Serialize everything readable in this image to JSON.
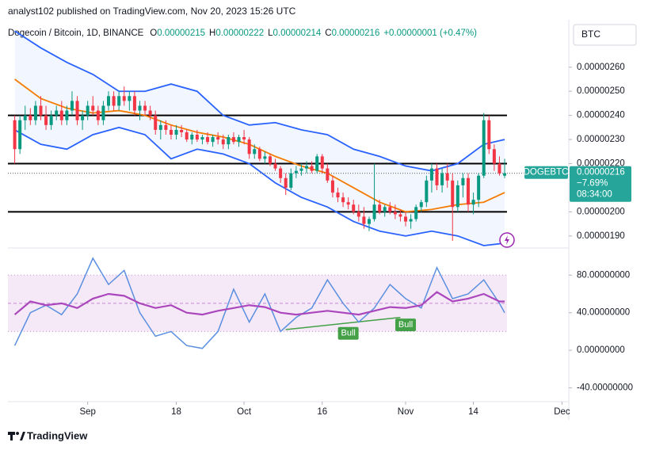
{
  "header": {
    "byline": "analyst102 published on TradingView.com, Nov 20, 2023 15:26 UTC",
    "brand": "TradingView"
  },
  "legend": {
    "symbol": "Dogecoin / Bitcoin, 1D, BINANCE",
    "ohlc": [
      {
        "label": "O",
        "value": "0.00000215"
      },
      {
        "label": "H",
        "value": "0.00000222"
      },
      {
        "label": "L",
        "value": "0.00000214"
      },
      {
        "label": "C",
        "value": "0.00000216"
      }
    ],
    "change": "+0.00000001 (+0.47%)"
  },
  "currency": "BTC",
  "price_tag": {
    "symbol": "DOGEBTC",
    "price": "0.00000216",
    "change": "−7.69%",
    "countdown": "08:34:00"
  },
  "chart_data": [
    {
      "type": "candlestick",
      "up_color": "#089981",
      "down_color": "#f23645",
      "x": [
        "2023-08-18",
        "2023-08-19",
        "2023-08-20",
        "2023-08-21",
        "2023-08-22",
        "2023-08-23",
        "2023-08-24",
        "2023-08-25",
        "2023-08-26",
        "2023-08-27",
        "2023-08-28",
        "2023-08-29",
        "2023-08-30",
        "2023-08-31",
        "2023-09-01",
        "2023-09-02",
        "2023-09-03",
        "2023-09-04",
        "2023-09-05",
        "2023-09-06",
        "2023-09-07",
        "2023-09-08",
        "2023-09-09",
        "2023-09-10",
        "2023-09-11",
        "2023-09-12",
        "2023-09-13",
        "2023-09-14",
        "2023-09-15",
        "2023-09-16",
        "2023-09-17",
        "2023-09-18",
        "2023-09-19",
        "2023-09-20",
        "2023-09-21",
        "2023-09-22",
        "2023-09-23",
        "2023-09-24",
        "2023-09-25",
        "2023-09-26",
        "2023-09-27",
        "2023-09-28",
        "2023-09-29",
        "2023-09-30",
        "2023-10-01",
        "2023-10-02",
        "2023-10-03",
        "2023-10-04",
        "2023-10-05",
        "2023-10-06",
        "2023-10-07",
        "2023-10-08",
        "2023-10-09",
        "2023-10-10",
        "2023-10-11",
        "2023-10-12",
        "2023-10-13",
        "2023-10-14",
        "2023-10-15",
        "2023-10-16",
        "2023-10-17",
        "2023-10-18",
        "2023-10-19",
        "2023-10-20",
        "2023-10-21",
        "2023-10-22",
        "2023-10-23",
        "2023-10-24",
        "2023-10-25",
        "2023-10-26",
        "2023-10-27",
        "2023-10-28",
        "2023-10-29",
        "2023-10-30",
        "2023-10-31",
        "2023-11-01",
        "2023-11-02",
        "2023-11-03",
        "2023-11-04",
        "2023-11-05",
        "2023-11-06",
        "2023-11-07",
        "2023-11-08",
        "2023-11-09",
        "2023-11-10",
        "2023-11-11",
        "2023-11-12",
        "2023-11-13",
        "2023-11-14",
        "2023-11-15",
        "2023-11-16",
        "2023-11-17",
        "2023-11-18",
        "2023-11-19",
        "2023-11-20"
      ],
      "open": [
        2.38e-06,
        2.26e-06,
        2.38e-06,
        2.4e-06,
        2.38e-06,
        2.44e-06,
        2.4e-06,
        2.36e-06,
        2.4e-06,
        2.42e-06,
        2.38e-06,
        2.42e-06,
        2.46e-06,
        2.38e-06,
        2.4e-06,
        2.44e-06,
        2.42e-06,
        2.38e-06,
        2.44e-06,
        2.48e-06,
        2.44e-06,
        2.48e-06,
        2.46e-06,
        2.48e-06,
        2.42e-06,
        2.44e-06,
        2.42e-06,
        2.4e-06,
        2.34e-06,
        2.36e-06,
        2.34e-06,
        2.32e-06,
        2.34e-06,
        2.33e-06,
        2.3e-06,
        2.32e-06,
        2.3e-06,
        2.31e-06,
        2.29e-06,
        2.31e-06,
        2.3e-06,
        2.28e-06,
        2.31e-06,
        2.29e-06,
        2.31e-06,
        2.3e-06,
        2.24e-06,
        2.26e-06,
        2.22e-06,
        2.23e-06,
        2.2e-06,
        2.18e-06,
        2.14e-06,
        2.1e-06,
        2.16e-06,
        2.17e-06,
        2.18e-06,
        2.19e-06,
        2.17e-06,
        2.23e-06,
        2.18e-06,
        2.13e-06,
        2.08e-06,
        2.06e-06,
        2.04e-06,
        2.03e-06,
        2e-06,
        1.98e-06,
        1.95e-06,
        1.97e-06,
        2.03e-06,
        2e-06,
        2.02e-06,
        2e-06,
        1.99e-06,
        1.98e-06,
        1.96e-06,
        1.97e-06,
        2.02e-06,
        2.04e-06,
        2.13e-06,
        2.18e-06,
        2.11e-06,
        2.16e-06,
        2.13e-06,
        2.02e-06,
        2.11e-06,
        2.14e-06,
        2.03e-06,
        2.05e-06,
        2.15e-06,
        2.38e-06,
        2.26e-06,
        2.2e-06,
        2.15e-06
      ],
      "high": [
        2.4e-06,
        2.4e-06,
        2.44e-06,
        2.43e-06,
        2.46e-06,
        2.48e-06,
        2.44e-06,
        2.42e-06,
        2.44e-06,
        2.46e-06,
        2.44e-06,
        2.5e-06,
        2.48e-06,
        2.42e-06,
        2.46e-06,
        2.48e-06,
        2.44e-06,
        2.46e-06,
        2.5e-06,
        2.5e-06,
        2.5e-06,
        2.52e-06,
        2.5e-06,
        2.5e-06,
        2.46e-06,
        2.46e-06,
        2.44e-06,
        2.42e-06,
        2.38e-06,
        2.38e-06,
        2.36e-06,
        2.36e-06,
        2.36e-06,
        2.34e-06,
        2.33e-06,
        2.34e-06,
        2.32e-06,
        2.33e-06,
        2.32e-06,
        2.33e-06,
        2.32e-06,
        2.32e-06,
        2.33e-06,
        2.32e-06,
        2.34e-06,
        2.31e-06,
        2.28e-06,
        2.27e-06,
        2.25e-06,
        2.24e-06,
        2.22e-06,
        2.19e-06,
        2.16e-06,
        2.18e-06,
        2.19e-06,
        2.2e-06,
        2.21e-06,
        2.21e-06,
        2.24e-06,
        2.24e-06,
        2.2e-06,
        2.15e-06,
        2.1e-06,
        2.08e-06,
        2.06e-06,
        2.05e-06,
        2.03e-06,
        2.02e-06,
        1.98e-06,
        2.2e-06,
        2.05e-06,
        2.03e-06,
        2.04e-06,
        2.03e-06,
        2.01e-06,
        2e-06,
        1.99e-06,
        2.03e-06,
        2.05e-06,
        2.15e-06,
        2.2e-06,
        2.2e-06,
        2.18e-06,
        2.2e-06,
        2.16e-06,
        2.13e-06,
        2.16e-06,
        2.16e-06,
        2.08e-06,
        2.16e-06,
        2.41e-06,
        2.4e-06,
        2.28e-06,
        2.23e-06,
        2.22e-06
      ],
      "low": [
        2.2e-06,
        2.24e-06,
        2.34e-06,
        2.36e-06,
        2.36e-06,
        2.38e-06,
        2.34e-06,
        2.34e-06,
        2.38e-06,
        2.36e-06,
        2.36e-06,
        2.4e-06,
        2.36e-06,
        2.34e-06,
        2.38e-06,
        2.4e-06,
        2.36e-06,
        2.36e-06,
        2.42e-06,
        2.42e-06,
        2.42e-06,
        2.44e-06,
        2.42e-06,
        2.4e-06,
        2.38e-06,
        2.4e-06,
        2.38e-06,
        2.32e-06,
        2.3e-06,
        2.32e-06,
        2.3e-06,
        2.3e-06,
        2.31e-06,
        2.29e-06,
        2.28e-06,
        2.29e-06,
        2.28e-06,
        2.28e-06,
        2.27e-06,
        2.28e-06,
        2.26e-06,
        2.26e-06,
        2.28e-06,
        2.27e-06,
        2.28e-06,
        2.22e-06,
        2.22e-06,
        2.21e-06,
        2.2e-06,
        2.19e-06,
        2.17e-06,
        2.12e-06,
        2.07e-06,
        2.09e-06,
        2.14e-06,
        2.15e-06,
        2.16e-06,
        2.16e-06,
        2.16e-06,
        2.16e-06,
        2.12e-06,
        2.06e-06,
        2.04e-06,
        2.02e-06,
        2.01e-06,
        1.99e-06,
        1.96e-06,
        1.93e-06,
        1.92e-06,
        1.96e-06,
        1.99e-06,
        1.98e-06,
        1.99e-06,
        1.97e-06,
        1.96e-06,
        1.94e-06,
        1.93e-06,
        1.96e-06,
        2e-06,
        2.02e-06,
        2.08e-06,
        2.09e-06,
        2.08e-06,
        2.1e-06,
        1.88e-06,
        2e-06,
        2.06e-06,
        2e-06,
        1.99e-06,
        2.02e-06,
        2.14e-06,
        2.24e-06,
        2.17e-06,
        2.15e-06,
        2.14e-06
      ],
      "close": [
        2.26e-06,
        2.38e-06,
        2.4e-06,
        2.38e-06,
        2.44e-06,
        2.4e-06,
        2.36e-06,
        2.4e-06,
        2.42e-06,
        2.38e-06,
        2.42e-06,
        2.46e-06,
        2.38e-06,
        2.4e-06,
        2.44e-06,
        2.42e-06,
        2.38e-06,
        2.44e-06,
        2.48e-06,
        2.44e-06,
        2.48e-06,
        2.46e-06,
        2.48e-06,
        2.42e-06,
        2.44e-06,
        2.42e-06,
        2.4e-06,
        2.34e-06,
        2.36e-06,
        2.34e-06,
        2.32e-06,
        2.34e-06,
        2.33e-06,
        2.3e-06,
        2.32e-06,
        2.3e-06,
        2.31e-06,
        2.29e-06,
        2.31e-06,
        2.3e-06,
        2.28e-06,
        2.31e-06,
        2.29e-06,
        2.31e-06,
        2.3e-06,
        2.24e-06,
        2.26e-06,
        2.22e-06,
        2.23e-06,
        2.2e-06,
        2.18e-06,
        2.14e-06,
        2.1e-06,
        2.16e-06,
        2.17e-06,
        2.18e-06,
        2.19e-06,
        2.17e-06,
        2.23e-06,
        2.18e-06,
        2.13e-06,
        2.08e-06,
        2.06e-06,
        2.04e-06,
        2.03e-06,
        2e-06,
        1.98e-06,
        1.95e-06,
        1.97e-06,
        2.03e-06,
        2e-06,
        2.02e-06,
        2e-06,
        1.99e-06,
        1.98e-06,
        1.96e-06,
        1.97e-06,
        2.02e-06,
        2.04e-06,
        2.13e-06,
        2.18e-06,
        2.11e-06,
        2.16e-06,
        2.13e-06,
        2.02e-06,
        2.11e-06,
        2.14e-06,
        2.03e-06,
        2.05e-06,
        2.15e-06,
        2.38e-06,
        2.26e-06,
        2.2e-06,
        2.16e-06,
        2.16e-06
      ],
      "bands": {
        "x": [
          "2023-08-18",
          "2023-08-23",
          "2023-08-28",
          "2023-09-02",
          "2023-09-07",
          "2023-09-12",
          "2023-09-17",
          "2023-09-22",
          "2023-09-27",
          "2023-10-02",
          "2023-10-07",
          "2023-10-12",
          "2023-10-17",
          "2023-10-22",
          "2023-10-27",
          "2023-11-01",
          "2023-11-06",
          "2023-11-11",
          "2023-11-16",
          "2023-11-20"
        ],
        "series": [
          {
            "color": "#2962ff",
            "values": [
              2.75e-06,
              2.68e-06,
              2.62e-06,
              2.57e-06,
              2.5e-06,
              2.5e-06,
              2.53e-06,
              2.5e-06,
              2.4e-06,
              2.36e-06,
              2.37e-06,
              2.34e-06,
              2.32e-06,
              2.26e-06,
              2.23e-06,
              2.19e-06,
              2.17e-06,
              2.2e-06,
              2.28e-06,
              2.3e-06
            ]
          },
          {
            "color": "#f57c00",
            "values": [
              2.55e-06,
              2.47e-06,
              2.43e-06,
              2.41e-06,
              2.42e-06,
              2.4e-06,
              2.36e-06,
              2.33e-06,
              2.31e-06,
              2.28e-06,
              2.23e-06,
              2.19e-06,
              2.16e-06,
              2.1e-06,
              2.04e-06,
              2e-06,
              2.01e-06,
              2.03e-06,
              2.04e-06,
              2.08e-06
            ]
          },
          {
            "color": "#2962ff",
            "values": [
              2.34e-06,
              2.28e-06,
              2.26e-06,
              2.32e-06,
              2.35e-06,
              2.32e-06,
              2.22e-06,
              2.26e-06,
              2.24e-06,
              2.2e-06,
              2.12e-06,
              2.06e-06,
              2.02e-06,
              1.96e-06,
              1.92e-06,
              1.9e-06,
              1.92e-06,
              1.9e-06,
              1.86e-06,
              1.87e-06
            ]
          }
        ]
      },
      "levels": [
        2.4e-06,
        2.2e-06,
        2e-06
      ],
      "last_price": 2.16e-06,
      "xlim": [
        "2023-08-17",
        "2023-12-02"
      ],
      "xticks": [
        {
          "value": "2023-09-01",
          "label": "Sep"
        },
        {
          "value": "2023-09-18",
          "label": "18"
        },
        {
          "value": "2023-10-01",
          "label": "Oct"
        },
        {
          "value": "2023-10-16",
          "label": "16"
        },
        {
          "value": "2023-11-01",
          "label": "Nov"
        },
        {
          "value": "2023-11-14",
          "label": "14"
        },
        {
          "value": "2023-12-01",
          "label": "Dec"
        }
      ],
      "ylim": [
        1.86e-06,
        2.78e-06
      ],
      "yticks": [
        {
          "value": 2.6e-06,
          "label": "0.00000260"
        },
        {
          "value": 2.5e-06,
          "label": "0.00000250"
        },
        {
          "value": 2.4e-06,
          "label": "0.00000240"
        },
        {
          "value": 2.3e-06,
          "label": "0.00000230"
        },
        {
          "value": 2.2e-06,
          "label": "0.00000220"
        },
        {
          "value": 2e-06,
          "label": "0.00000200"
        },
        {
          "value": 1.9e-06,
          "label": "0.00000190"
        }
      ],
      "grid": false
    },
    {
      "type": "line",
      "x": [
        "2023-08-18",
        "2023-08-21",
        "2023-08-24",
        "2023-08-27",
        "2023-08-30",
        "2023-09-02",
        "2023-09-05",
        "2023-09-08",
        "2023-09-11",
        "2023-09-14",
        "2023-09-17",
        "2023-09-20",
        "2023-09-23",
        "2023-09-26",
        "2023-09-29",
        "2023-10-02",
        "2023-10-05",
        "2023-10-08",
        "2023-10-11",
        "2023-10-14",
        "2023-10-17",
        "2023-10-20",
        "2023-10-23",
        "2023-10-26",
        "2023-10-29",
        "2023-11-01",
        "2023-11-04",
        "2023-11-07",
        "2023-11-10",
        "2023-11-13",
        "2023-11-16",
        "2023-11-19",
        "2023-11-20"
      ],
      "series": [
        {
          "color": "#5b8fe0",
          "values": [
            5,
            40,
            48,
            38,
            60,
            98,
            70,
            85,
            40,
            15,
            20,
            5,
            2,
            20,
            65,
            30,
            60,
            20,
            35,
            45,
            75,
            50,
            30,
            45,
            70,
            55,
            45,
            88,
            55,
            60,
            75,
            50,
            40
          ]
        },
        {
          "color": "#ab47bc",
          "values": [
            38,
            52,
            48,
            50,
            45,
            55,
            60,
            58,
            50,
            45,
            48,
            40,
            38,
            42,
            45,
            48,
            46,
            40,
            38,
            40,
            42,
            40,
            38,
            42,
            46,
            45,
            48,
            62,
            52,
            55,
            60,
            52,
            52
          ]
        }
      ],
      "bands": [
        80,
        50,
        20
      ],
      "annotations": [
        {
          "text": "Bull",
          "x": "2023-10-21",
          "y": 18
        },
        {
          "text": "Bull",
          "x": "2023-11-01",
          "y": 27
        }
      ],
      "divergence": {
        "x": [
          "2023-10-09",
          "2023-10-31"
        ],
        "values": [
          22,
          35
        ],
        "color": "#43a047"
      },
      "xlim": [
        "2023-08-17",
        "2023-12-02"
      ],
      "ylim": [
        -53,
        103
      ],
      "yticks": [
        {
          "value": 80,
          "label": "80.00000000"
        },
        {
          "value": 40,
          "label": "40.00000000"
        },
        {
          "value": 0,
          "label": "0.00000000"
        },
        {
          "value": -40,
          "label": "-40.00000000"
        }
      ]
    }
  ]
}
